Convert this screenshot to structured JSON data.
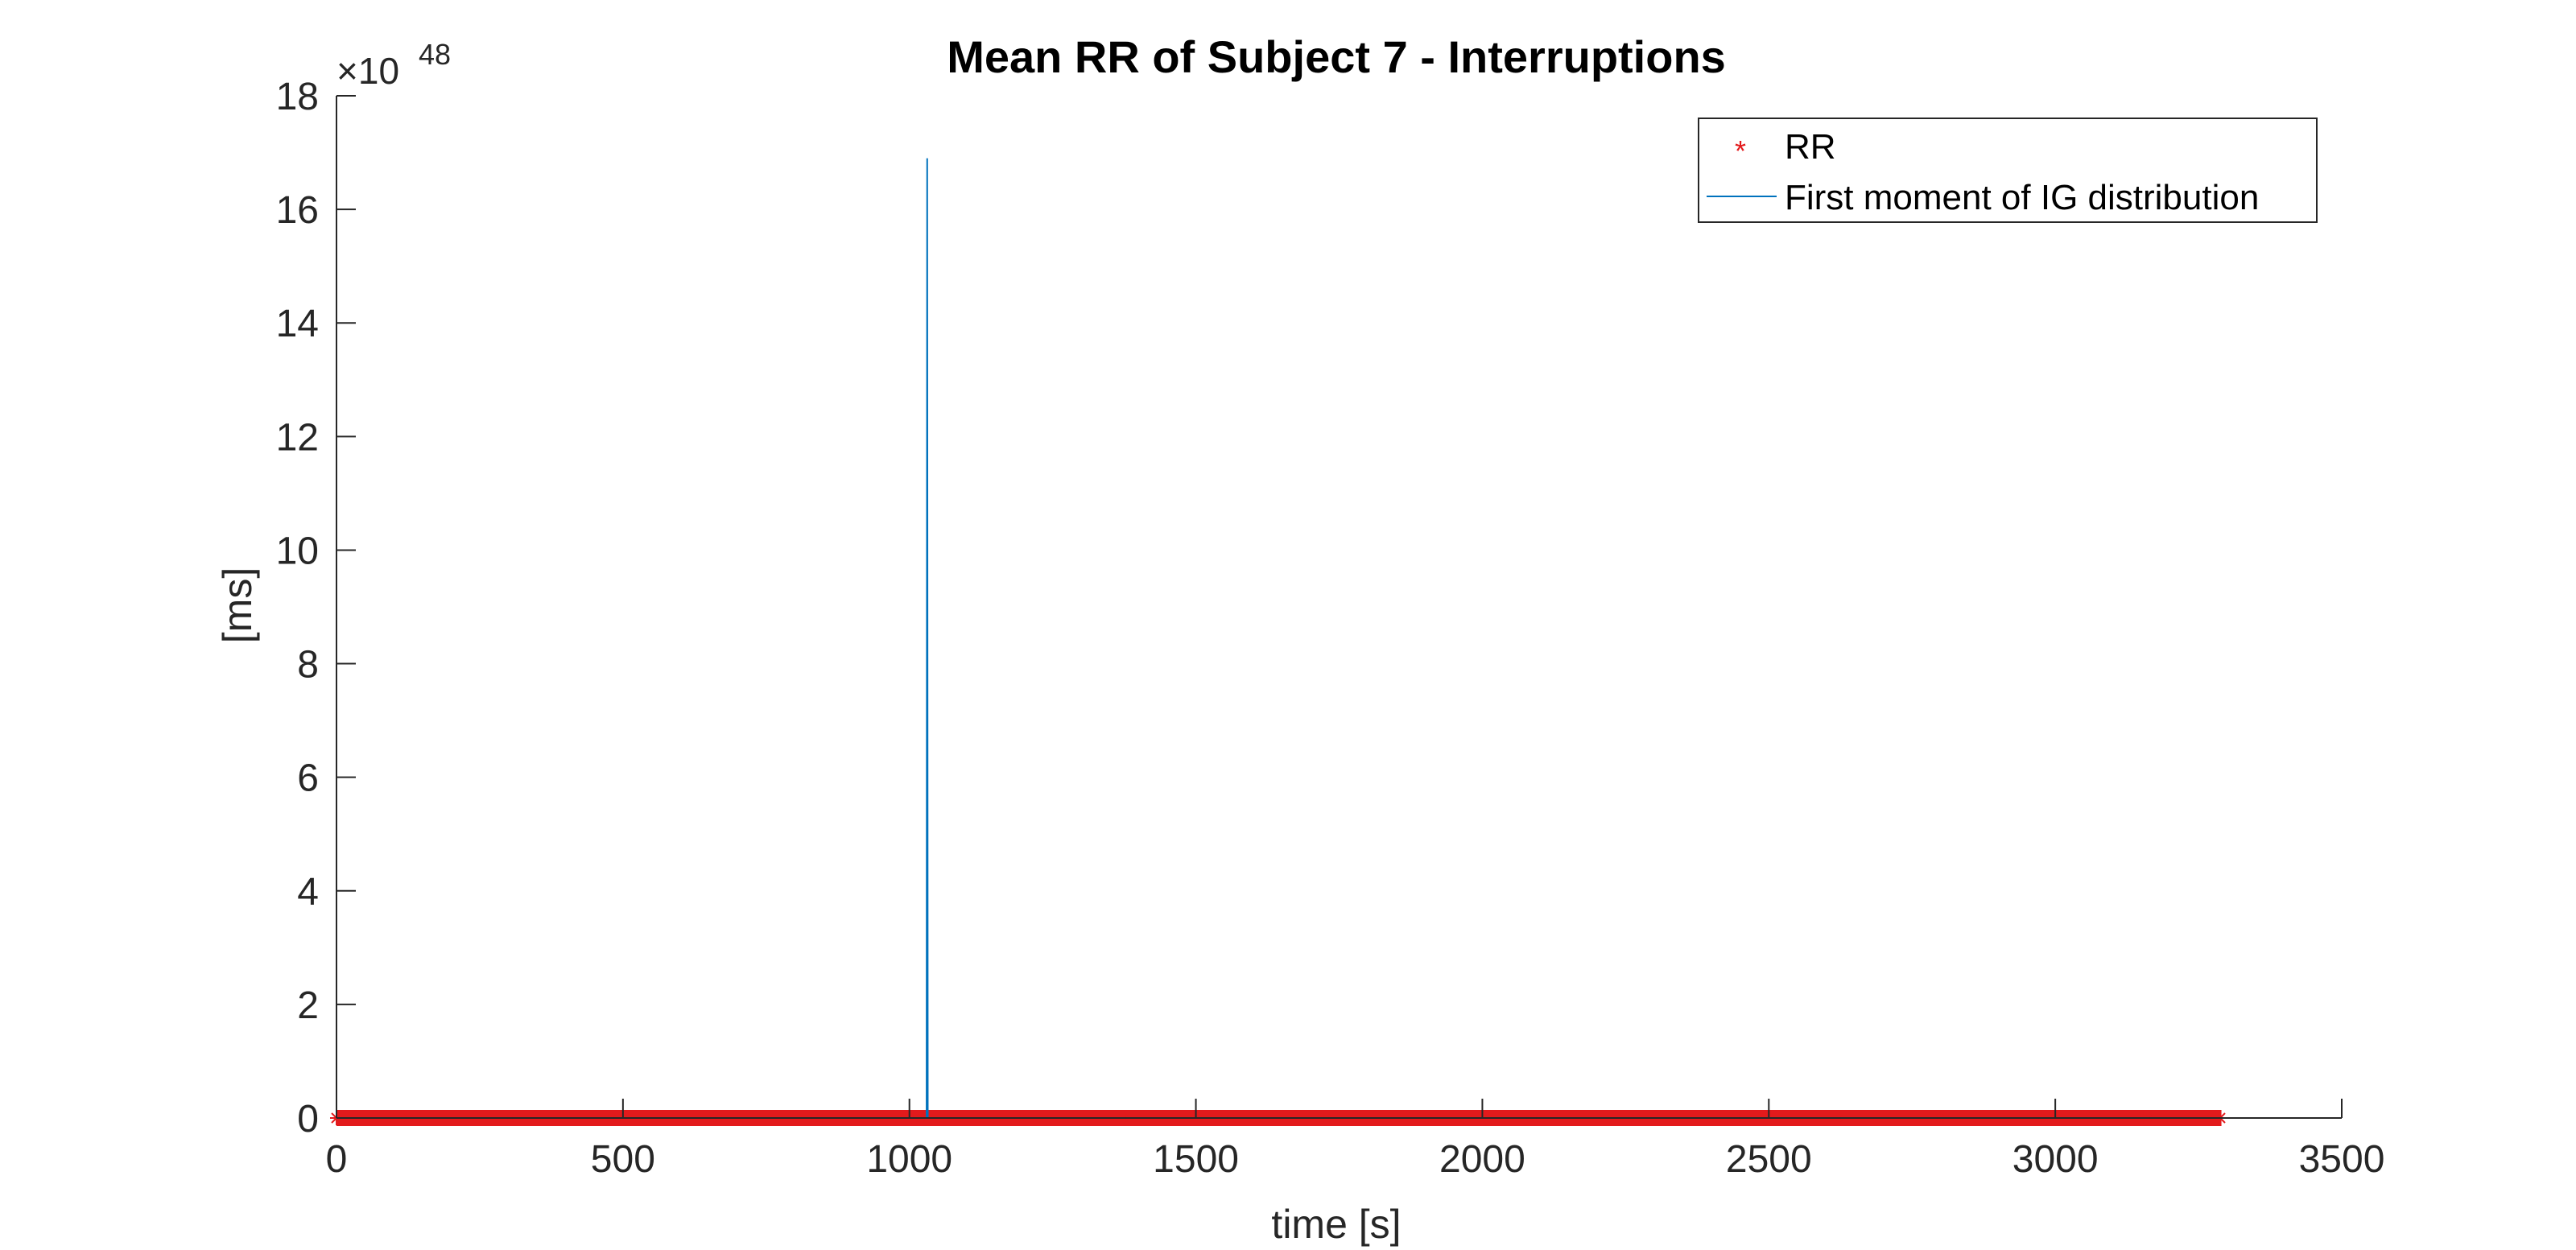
{
  "chart_data": {
    "type": "line",
    "title": "Mean RR of Subject 7 - Interruptions",
    "xlabel": "time [s]",
    "ylabel": "[ms]",
    "y_exponent_label": "×10",
    "y_exponent_power": "48",
    "xlim": [
      0,
      3500
    ],
    "ylim": [
      0,
      18
    ],
    "x_ticks": [
      "0",
      "500",
      "1000",
      "1500",
      "2000",
      "2500",
      "3000",
      "3500"
    ],
    "y_ticks": [
      "0",
      "2",
      "4",
      "6",
      "8",
      "10",
      "12",
      "14",
      "16",
      "18"
    ],
    "grid": false,
    "legend_position": "top-right",
    "series": [
      {
        "name": "RR",
        "kind": "markers",
        "marker": "*",
        "color": "#e31a1c",
        "x_range": [
          0,
          3290
        ],
        "y_value": 0
      },
      {
        "name": "First moment of IG distribution",
        "kind": "line",
        "color": "#0072bd",
        "x": [
          0,
          1030,
          1031,
          1032,
          3290
        ],
        "y": [
          0,
          0,
          16.9,
          0,
          0
        ]
      }
    ]
  },
  "colors": {
    "axis": "#262626",
    "text": "#262626",
    "rr": "#e31a1c",
    "ig": "#0072bd"
  }
}
